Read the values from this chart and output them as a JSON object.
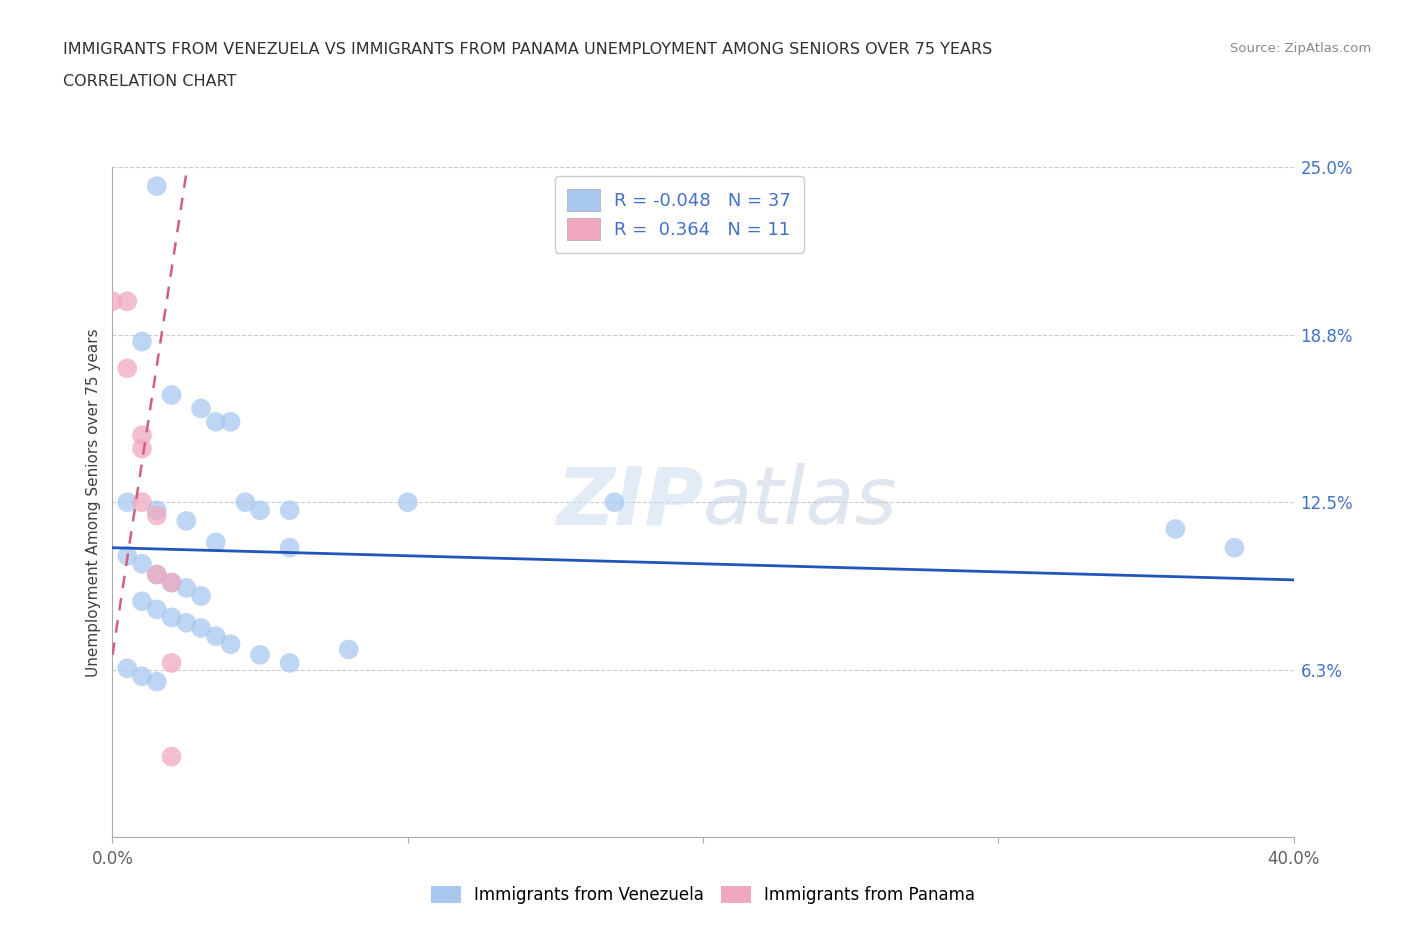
{
  "title_line1": "IMMIGRANTS FROM VENEZUELA VS IMMIGRANTS FROM PANAMA UNEMPLOYMENT AMONG SENIORS OVER 75 YEARS",
  "title_line2": "CORRELATION CHART",
  "source": "Source: ZipAtlas.com",
  "ylabel": "Unemployment Among Seniors over 75 years",
  "xlim": [
    0,
    0.4
  ],
  "ylim": [
    0,
    0.25
  ],
  "xtick_positions": [
    0.0,
    0.1,
    0.2,
    0.3,
    0.4
  ],
  "xtick_labels": [
    "0.0%",
    "",
    "",
    "",
    "40.0%"
  ],
  "ytick_positions": [
    0.0,
    0.0625,
    0.125,
    0.1875,
    0.25
  ],
  "ytick_labels": [
    "",
    "6.3%",
    "12.5%",
    "18.8%",
    "25.0%"
  ],
  "watermark": "ZIPatlas",
  "legend_r_venezuela": "-0.048",
  "legend_n_venezuela": "37",
  "legend_r_panama": "0.364",
  "legend_n_panama": "11",
  "venezuela_color": "#a8c8f0",
  "panama_color": "#f0a8c0",
  "venezuela_line_color": "#2255bb",
  "panama_line_color": "#d06080",
  "venezuela_scatter": [
    [
      0.015,
      0.243
    ],
    [
      0.01,
      0.185
    ],
    [
      0.02,
      0.165
    ],
    [
      0.03,
      0.16
    ],
    [
      0.005,
      0.125
    ],
    [
      0.015,
      0.122
    ],
    [
      0.025,
      0.118
    ],
    [
      0.035,
      0.155
    ],
    [
      0.04,
      0.155
    ],
    [
      0.045,
      0.125
    ],
    [
      0.05,
      0.122
    ],
    [
      0.06,
      0.122
    ],
    [
      0.035,
      0.11
    ],
    [
      0.06,
      0.108
    ],
    [
      0.005,
      0.105
    ],
    [
      0.01,
      0.102
    ],
    [
      0.015,
      0.098
    ],
    [
      0.02,
      0.095
    ],
    [
      0.025,
      0.093
    ],
    [
      0.03,
      0.09
    ],
    [
      0.01,
      0.088
    ],
    [
      0.015,
      0.085
    ],
    [
      0.02,
      0.082
    ],
    [
      0.025,
      0.08
    ],
    [
      0.03,
      0.078
    ],
    [
      0.035,
      0.075
    ],
    [
      0.04,
      0.072
    ],
    [
      0.05,
      0.068
    ],
    [
      0.06,
      0.065
    ],
    [
      0.005,
      0.063
    ],
    [
      0.01,
      0.06
    ],
    [
      0.015,
      0.058
    ],
    [
      0.08,
      0.07
    ],
    [
      0.1,
      0.125
    ],
    [
      0.17,
      0.125
    ],
    [
      0.36,
      0.115
    ],
    [
      0.38,
      0.108
    ]
  ],
  "panama_scatter": [
    [
      0.0,
      0.2
    ],
    [
      0.005,
      0.2
    ],
    [
      0.005,
      0.175
    ],
    [
      0.01,
      0.15
    ],
    [
      0.01,
      0.145
    ],
    [
      0.01,
      0.125
    ],
    [
      0.015,
      0.12
    ],
    [
      0.015,
      0.098
    ],
    [
      0.02,
      0.095
    ],
    [
      0.02,
      0.065
    ],
    [
      0.02,
      0.03
    ]
  ],
  "background_color": "#ffffff",
  "grid_color": "#cccccc",
  "title_color": "#303030",
  "axis_label_color": "#404040"
}
